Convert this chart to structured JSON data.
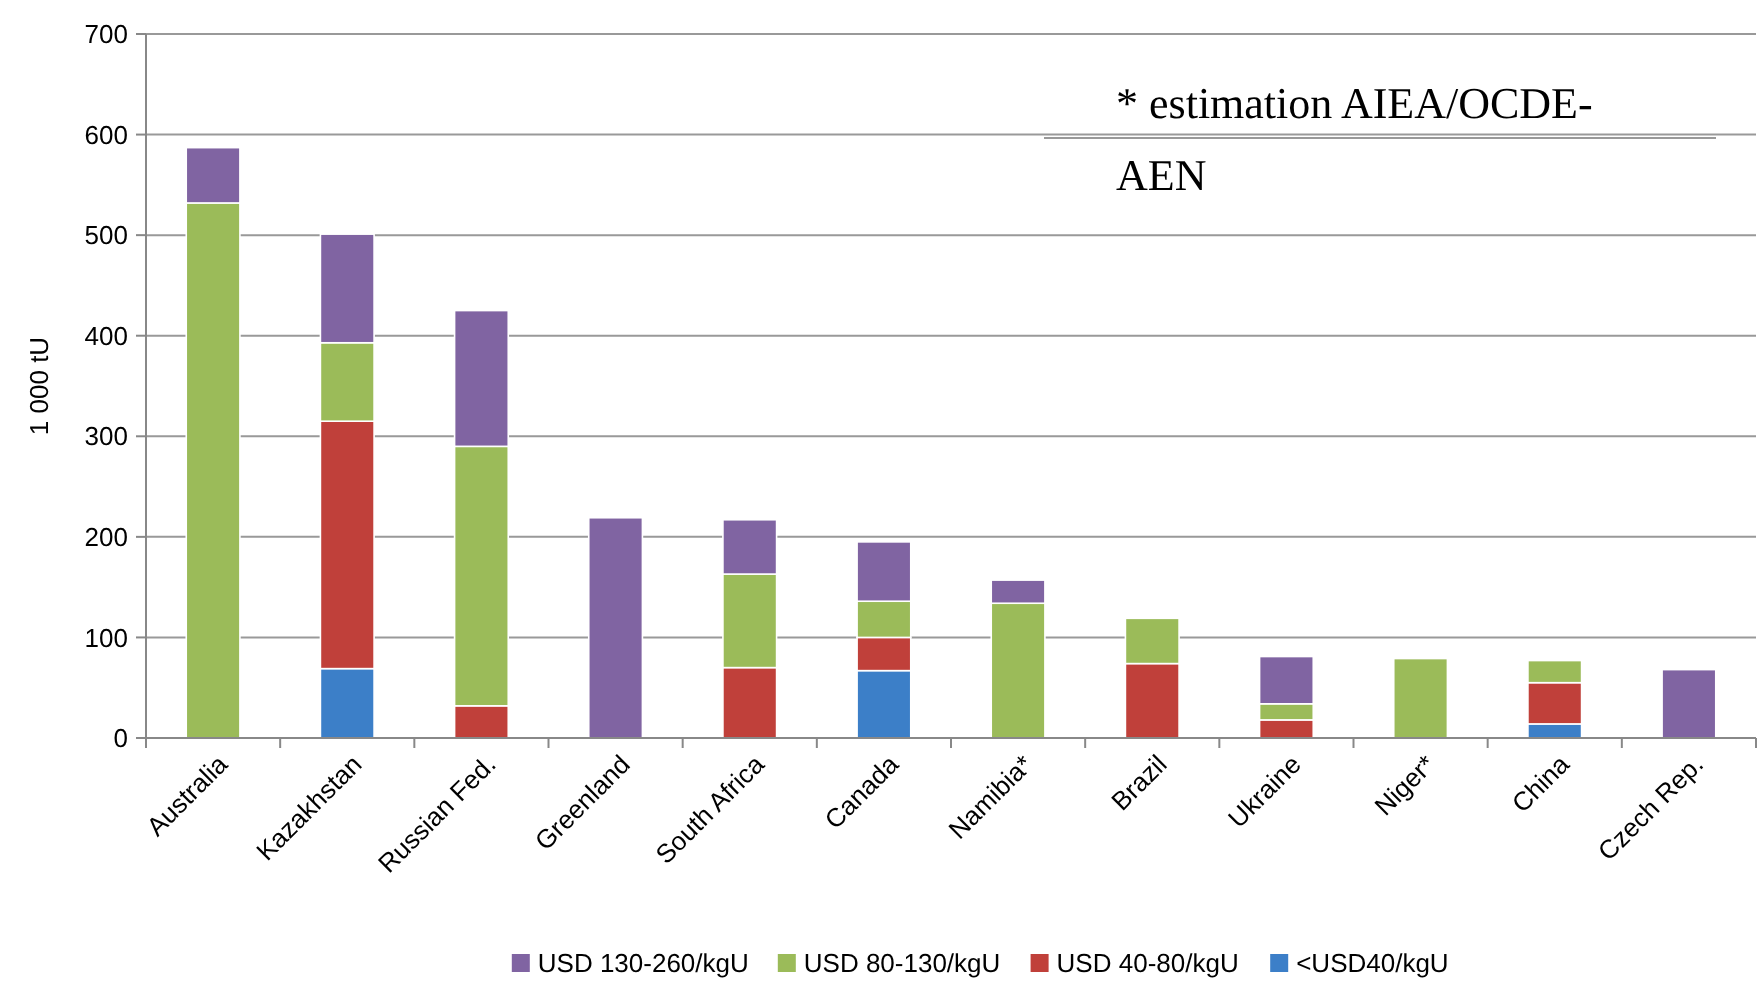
{
  "chart_data": {
    "type": "bar",
    "stacked": true,
    "ylabel": "1 000 tU",
    "categories": [
      "Australia",
      "Kazakhstan",
      "Russian Fed.",
      "Greenland",
      "South Africa",
      "Canada",
      "Namibia*",
      "Brazil",
      "Ukraine",
      "Niger*",
      "China",
      "Czech Rep."
    ],
    "series": [
      {
        "name": "<USD40/kgU",
        "color": "#3c7fc8",
        "values": [
          null,
          69,
          null,
          null,
          null,
          67,
          null,
          null,
          null,
          null,
          14,
          null
        ]
      },
      {
        "name": "USD 40-80/kgU",
        "color": "#c0403a",
        "values": [
          null,
          246,
          32,
          null,
          70,
          33,
          null,
          74,
          18,
          null,
          41,
          null
        ]
      },
      {
        "name": "USD 80-130/kgU",
        "color": "#9bbb59",
        "values": [
          532,
          78,
          258,
          null,
          93,
          36,
          134,
          45,
          16,
          79,
          22,
          null
        ]
      },
      {
        "name": "USD 130-260/kgU",
        "color": "#8064a2",
        "values": [
          55,
          108,
          135,
          219,
          54,
          59,
          23,
          null,
          47,
          null,
          null,
          68
        ]
      }
    ],
    "ylim": [
      0,
      700
    ],
    "yticks": [
      0,
      100,
      200,
      300,
      400,
      500,
      600,
      700
    ],
    "grid": "y",
    "legend": "bottom",
    "annotations": [
      "* estimation AIEA/OCDE-AEN"
    ]
  }
}
